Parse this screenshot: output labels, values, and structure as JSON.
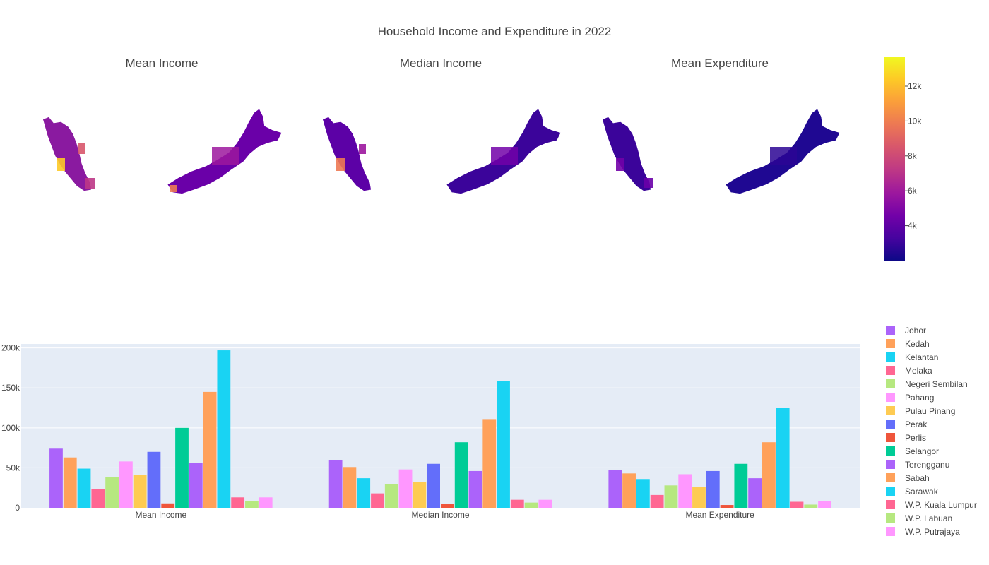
{
  "page": {
    "title": "Household Income and Expenditure in 2022"
  },
  "maps": {
    "subplots": [
      {
        "title": "Mean Income"
      },
      {
        "title": "Median Income"
      },
      {
        "title": "Mean Expenditure"
      }
    ],
    "colorbar": {
      "ticks": [
        "4k",
        "6k",
        "8k",
        "10k",
        "12k"
      ],
      "tick_values": [
        4000,
        6000,
        8000,
        10000,
        12000
      ],
      "range": [
        2000,
        13700
      ],
      "colors": [
        "#0d0887",
        "#46039f",
        "#7201a8",
        "#9c179e",
        "#bd3786",
        "#d8576b",
        "#ed7953",
        "#fb9f3a",
        "#fdca26",
        "#f0f921"
      ]
    }
  },
  "chart_data": {
    "type": "bar",
    "categories": [
      "Mean Income",
      "Median Income",
      "Mean Expenditure"
    ],
    "ylim": [
      0,
      205000
    ],
    "yticks": [
      0,
      50000,
      100000,
      150000,
      200000
    ],
    "ytick_labels": [
      "0",
      "50k",
      "100k",
      "150k",
      "200k"
    ],
    "legend_position": "right",
    "series": [
      {
        "name": "Johor",
        "color": "#ab63fa",
        "values": [
          74000,
          60000,
          47000
        ]
      },
      {
        "name": "Kedah",
        "color": "#ffa15a",
        "values": [
          63000,
          51000,
          43000
        ]
      },
      {
        "name": "Kelantan",
        "color": "#19d3f3",
        "values": [
          49000,
          37000,
          36000
        ]
      },
      {
        "name": "Melaka",
        "color": "#ff6692",
        "values": [
          23000,
          18000,
          16000
        ]
      },
      {
        "name": "Negeri Sembilan",
        "color": "#b6e880",
        "values": [
          38000,
          30000,
          28000
        ]
      },
      {
        "name": "Pahang",
        "color": "#ff97ff",
        "values": [
          58000,
          48000,
          42000
        ]
      },
      {
        "name": "Pulau Pinang",
        "color": "#fecb52",
        "values": [
          41000,
          32000,
          26000
        ]
      },
      {
        "name": "Perak",
        "color": "#636efa",
        "values": [
          70000,
          55000,
          46000
        ]
      },
      {
        "name": "Perlis",
        "color": "#ef553b",
        "values": [
          5500,
          4500,
          3500
        ]
      },
      {
        "name": "Selangor",
        "color": "#00cc96",
        "values": [
          100000,
          82000,
          55000
        ]
      },
      {
        "name": "Terengganu",
        "color": "#ab63fa",
        "values": [
          56000,
          46000,
          37000
        ]
      },
      {
        "name": "Sabah",
        "color": "#ffa15a",
        "values": [
          145000,
          111000,
          82000
        ]
      },
      {
        "name": "Sarawak",
        "color": "#19d3f3",
        "values": [
          197000,
          159000,
          125000
        ]
      },
      {
        "name": "W.P. Kuala Lumpur",
        "color": "#ff6692",
        "values": [
          13000,
          10000,
          7500
        ]
      },
      {
        "name": "W.P. Labuan",
        "color": "#b6e880",
        "values": [
          8000,
          6500,
          4000
        ]
      },
      {
        "name": "W.P. Putrajaya",
        "color": "#ff97ff",
        "values": [
          13000,
          10000,
          8500
        ]
      }
    ]
  }
}
